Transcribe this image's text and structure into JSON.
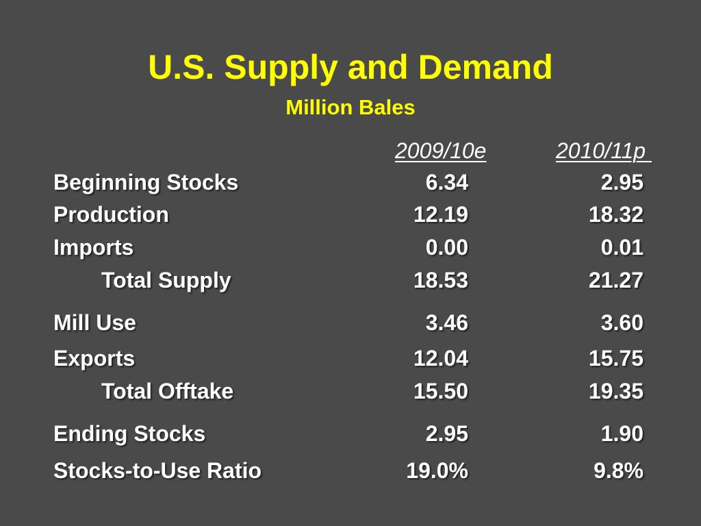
{
  "slide": {
    "title": "U.S. Supply and Demand",
    "subtitle": "Million Bales",
    "title_color": "#ffff00",
    "background_color": "#4a4a4a",
    "columns": [
      "2009/10e",
      "2010/11p "
    ],
    "rows": [
      {
        "label": "Beginning Stocks",
        "v1": "6.34",
        "v2": "2.95"
      },
      {
        "label": "Production",
        "v1": "12.19",
        "v2": "18.32"
      },
      {
        "label": "Imports",
        "v1": "0.00",
        "v2": "0.01"
      },
      {
        "label": "Total Supply",
        "v1": "18.53",
        "v2": "21.27"
      },
      {
        "label": "Mill Use",
        "v1": "3.46",
        "v2": "3.60"
      },
      {
        "label": "Exports",
        "v1": "12.04",
        "v2": "15.75"
      },
      {
        "label": "Total Offtake",
        "v1": "15.50",
        "v2": "19.35"
      },
      {
        "label": "Ending Stocks",
        "v1": "2.95",
        "v2": "1.90"
      },
      {
        "label": "Stocks-to-Use Ratio",
        "v1": "19.0%",
        "v2": "9.8%"
      }
    ]
  }
}
